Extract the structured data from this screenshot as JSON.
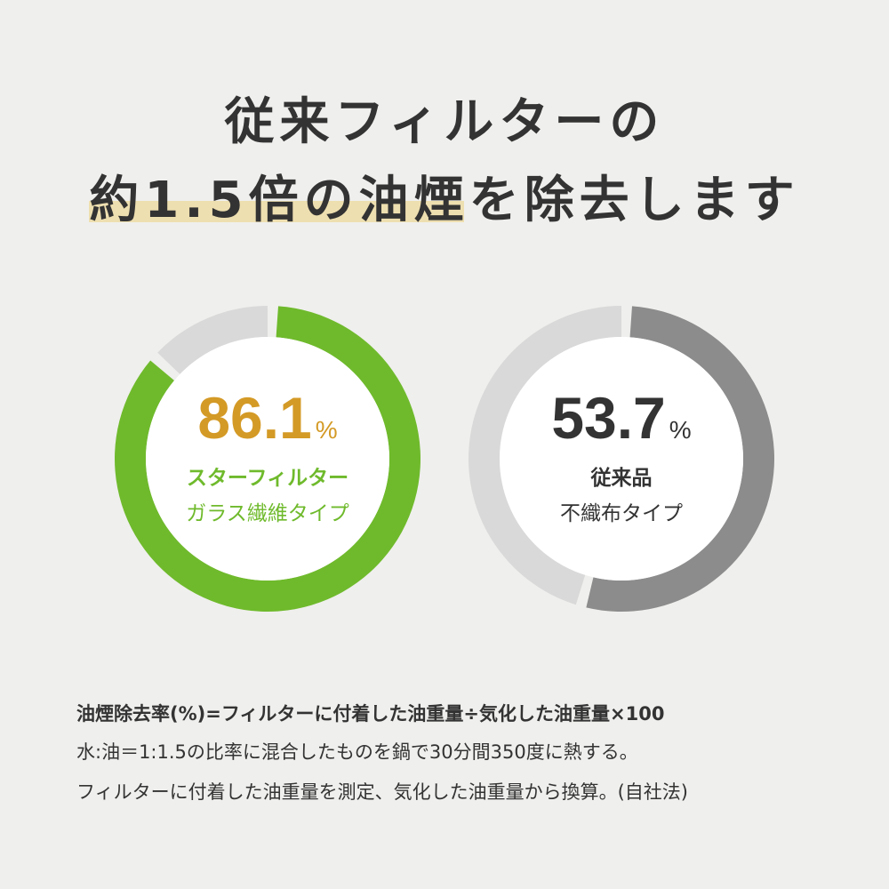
{
  "headline": {
    "line1": "従来フィルターの",
    "line2": "約1.5倍の油煙を除去します",
    "highlight_color": "#eedfb0"
  },
  "chart_data": [
    {
      "type": "pie",
      "donut": true,
      "value": 86.1,
      "unit": "%",
      "label1": "スターフィルター",
      "label2": "ガラス繊維タイプ",
      "fill_color": "#6fba2c",
      "rest_color": "#d9d9d9",
      "value_color": "#d49a26",
      "label_color": "#6fba2c"
    },
    {
      "type": "pie",
      "donut": true,
      "value": 53.7,
      "unit": "%",
      "label1": "従来品",
      "label2": "不織布タイプ",
      "fill_color": "#8c8c8c",
      "rest_color": "#d9d9d9",
      "value_color": "#333333",
      "label_color": "#333333"
    }
  ],
  "notes": {
    "formula": "油煙除去率(%)=フィルターに付着した油重量÷気化した油重量×100",
    "method1": "水:油＝1:1.5の比率に混合したものを鍋で30分間350度に熱する。",
    "method2": "フィルターに付着した油重量を測定、気化した油重量から換算。(自社法)"
  }
}
